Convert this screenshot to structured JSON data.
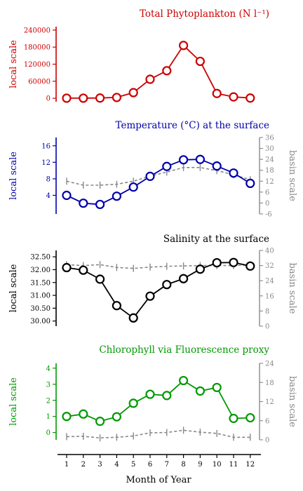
{
  "chart_data": [
    {
      "id": "phyto",
      "type": "line",
      "title": "Total Phytoplankton (N l⁻¹)",
      "color": "#cc0000",
      "ylabel": "local scale",
      "ylim": [
        -12000,
        252000
      ],
      "yticks": [
        "0",
        "60000",
        "120000",
        "180000",
        "240000"
      ],
      "x": [
        1,
        2,
        3,
        4,
        5,
        6,
        7,
        8,
        9,
        10,
        11,
        12
      ],
      "series": [
        {
          "values": [
            500,
            500,
            1000,
            3000,
            20000,
            67000,
            97000,
            186000,
            130000,
            17000,
            5000,
            1000
          ]
        }
      ]
    },
    {
      "id": "temp",
      "type": "line",
      "title": "Temperature (°C) at the surface",
      "color": "#0000aa",
      "ylabel": "local scale",
      "ylabel_right": "basin scale",
      "ylim": [
        -0.5,
        18
      ],
      "yticks": [
        "4",
        "8",
        "12",
        "16"
      ],
      "ylim_right": [
        -6,
        36
      ],
      "yticks_right": [
        "-6",
        "0",
        "6",
        "12",
        "18",
        "24",
        "30",
        "36"
      ],
      "x": [
        1,
        2,
        3,
        4,
        5,
        6,
        7,
        8,
        9,
        10,
        11,
        12
      ],
      "series": [
        {
          "values": [
            4.0,
            2.1,
            1.8,
            3.8,
            6.0,
            8.6,
            11.0,
            12.6,
            12.7,
            11.1,
            9.4,
            6.9
          ]
        },
        {
          "axis": "right",
          "style": "dashed",
          "values": [
            12.0,
            9.8,
            9.8,
            10.3,
            12.0,
            14.8,
            17.0,
            19.5,
            19.5,
            17.8,
            15.5,
            12.8
          ]
        }
      ]
    },
    {
      "id": "sal",
      "type": "line",
      "title": "Salinity at the surface",
      "color": "#000000",
      "ylabel": "local scale",
      "ylabel_right": "basin scale",
      "ylim": [
        29.8,
        32.75
      ],
      "yticks": [
        "30.00",
        "30.50",
        "31.00",
        "31.50",
        "32.00",
        "32.50"
      ],
      "ylim_right": [
        0,
        40
      ],
      "yticks_right": [
        "0",
        "8",
        "16",
        "24",
        "32",
        "40"
      ],
      "x": [
        1,
        2,
        3,
        4,
        5,
        6,
        7,
        8,
        9,
        10,
        11,
        12
      ],
      "series": [
        {
          "values": [
            32.08,
            31.98,
            31.63,
            30.6,
            30.12,
            30.97,
            31.42,
            31.65,
            32.02,
            32.27,
            32.28,
            32.14
          ]
        },
        {
          "axis": "right",
          "style": "dashed",
          "values": [
            32.5,
            32.0,
            32.5,
            31.0,
            30.5,
            31.2,
            31.6,
            31.8,
            32.0,
            32.0,
            32.0,
            32.3
          ]
        }
      ]
    },
    {
      "id": "chl",
      "type": "line",
      "title": "Chlorophyll via Fluorescence proxy",
      "color": "#009900",
      "ylabel": "local scale",
      "ylabel_right": "basin scale",
      "ylim": [
        -0.45,
        4.3
      ],
      "yticks": [
        "0",
        "1",
        "2",
        "3",
        "4"
      ],
      "ylim_right": [
        0,
        24
      ],
      "yticks_right": [
        "0",
        "6",
        "12",
        "18",
        "24"
      ],
      "x": [
        1,
        2,
        3,
        4,
        5,
        6,
        7,
        8,
        9,
        10,
        11,
        12
      ],
      "series": [
        {
          "values": [
            1.0,
            1.15,
            0.7,
            0.98,
            1.82,
            2.38,
            2.3,
            3.23,
            2.58,
            2.8,
            0.88,
            0.92
          ]
        },
        {
          "axis": "right",
          "style": "dashed",
          "values": [
            1.0,
            1.1,
            0.6,
            0.8,
            1.2,
            2.2,
            2.3,
            3.0,
            2.4,
            2.0,
            0.8,
            0.8
          ]
        }
      ]
    }
  ],
  "x_axis": {
    "xlabel": "Month of Year",
    "ticks": [
      "1",
      "2",
      "3",
      "4",
      "5",
      "6",
      "7",
      "8",
      "9",
      "10",
      "11",
      "12"
    ]
  }
}
